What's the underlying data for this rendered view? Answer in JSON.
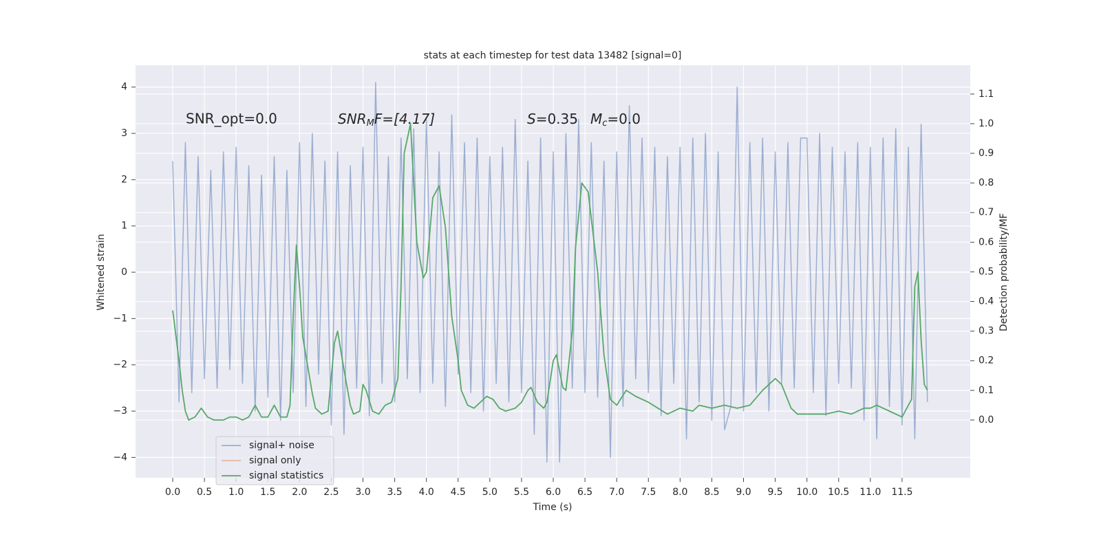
{
  "chart_data": {
    "type": "line",
    "title": "stats at each timestep for test data 13482 [signal=0]",
    "x_label": "Time (s)",
    "y_label": "Whitened strain",
    "y2_label": "Detection probability/MF",
    "annotations": {
      "snr_opt": "SNR_opt=0.0",
      "snr_mf": {
        "text": "SNR",
        "sub": "M",
        "rest": "F=[4.17]"
      },
      "s": {
        "text": "S",
        "rest": "=0.35"
      },
      "mc": {
        "text": "M",
        "sub": "c",
        "rest": "=0.0"
      }
    },
    "xlim": [
      -0.586,
      12.575
    ],
    "ylim": [
      -4.44,
      4.47
    ],
    "y2lim": [
      -0.195,
      1.197
    ],
    "grid": true,
    "xticks": [
      {
        "value": 0,
        "label": "0.0"
      },
      0.5,
      {
        "value": 1,
        "label": "1.0"
      },
      1.5,
      {
        "value": 2,
        "label": "2.0"
      },
      2.5,
      {
        "value": 3,
        "label": "3.0"
      },
      3.5,
      {
        "value": 4,
        "label": "4.0"
      },
      4.5,
      {
        "value": 5,
        "label": "5.0"
      },
      5.5,
      {
        "value": 6,
        "label": "6.0"
      },
      6.5,
      {
        "value": 7,
        "label": "7.0"
      },
      7.5,
      {
        "value": 8,
        "label": "8.0"
      },
      8.5,
      {
        "value": 9,
        "label": "9.0"
      },
      9.5,
      {
        "value": 10,
        "label": "10.0"
      },
      10.5,
      {
        "value": 11,
        "label": "11.0"
      },
      11.5
    ],
    "yticks": [
      {
        "value": -4,
        "label": "−4"
      },
      {
        "value": -3,
        "label": "−3"
      },
      {
        "value": -2,
        "label": "−2"
      },
      {
        "value": -1,
        "label": "−1"
      },
      0,
      1,
      2,
      3,
      4
    ],
    "y2ticks": [
      {
        "value": 0,
        "label": "0.0"
      },
      0.1,
      0.2,
      0.3,
      0.4,
      0.5,
      0.6,
      0.7,
      0.8,
      0.9,
      {
        "value": 1,
        "label": "1.0"
      },
      1.1
    ],
    "series": [
      {
        "name": "signal+ noise",
        "color": "#4c72b0",
        "opacity": 0.5,
        "x": [
          0,
          0.1,
          0.2,
          0.3,
          0.4,
          0.5,
          0.6,
          0.7,
          0.8,
          0.9,
          1,
          1.1,
          1.2,
          1.3,
          1.4,
          1.5,
          1.6,
          1.7,
          1.8,
          1.9,
          2,
          2.1,
          2.2,
          2.3,
          2.4,
          2.5,
          2.6,
          2.7,
          2.8,
          2.9,
          3,
          3.1,
          3.2,
          3.3,
          3.4,
          3.5,
          3.6,
          3.7,
          3.8,
          3.9,
          4,
          4.1,
          4.2,
          4.3,
          4.4,
          4.5,
          4.6,
          4.7,
          4.8,
          4.9,
          5,
          5.1,
          5.2,
          5.3,
          5.4,
          5.5,
          5.6,
          5.7,
          5.8,
          5.9,
          6,
          6.1,
          6.2,
          6.3,
          6.4,
          6.5,
          6.6,
          6.7,
          6.8,
          6.9,
          7,
          7.1,
          7.2,
          7.3,
          7.4,
          7.5,
          7.6,
          7.7,
          7.8,
          7.9,
          8,
          8.1,
          8.2,
          8.3,
          8.4,
          8.5,
          8.6,
          8.7,
          8.8,
          8.9,
          9,
          9.1,
          9.2,
          9.3,
          9.4,
          9.5,
          9.6,
          9.7,
          9.8,
          9.9,
          10,
          10.1,
          10.2,
          10.3,
          10.4,
          10.5,
          10.6,
          10.7,
          10.8,
          10.9,
          11,
          11.1,
          11.2,
          11.3,
          11.4,
          11.5,
          11.6,
          11.7,
          11.8,
          11.9
        ],
        "values": [
          2.4,
          -2.8,
          2.8,
          -2.6,
          2.5,
          -2.3,
          2.2,
          -2.5,
          2.6,
          -2.1,
          2.7,
          -2.4,
          2.3,
          -3.0,
          2.1,
          -2.7,
          2.5,
          -3.2,
          2.2,
          -2.6,
          2.8,
          -2.9,
          3.0,
          -2.2,
          2.4,
          -3.3,
          2.6,
          -3.5,
          2.3,
          -2.5,
          2.7,
          -3.1,
          4.1,
          -2.4,
          2.5,
          -2.8,
          2.9,
          -2.3,
          3.1,
          -2.6,
          3.3,
          -2.4,
          2.6,
          -2.9,
          3.4,
          -2.2,
          2.8,
          -2.6,
          2.9,
          -3.0,
          2.5,
          -2.4,
          2.7,
          -2.8,
          3.3,
          -2.6,
          2.4,
          -3.5,
          2.9,
          -4.1,
          2.6,
          -4.1,
          3.0,
          -2.5,
          3.3,
          -2.6,
          2.8,
          -2.7,
          2.4,
          -4.0,
          2.6,
          -2.9,
          3.6,
          -2.3,
          2.9,
          -2.6,
          2.7,
          -3.1,
          2.5,
          -2.4,
          2.7,
          -3.6,
          2.9,
          -2.8,
          3.0,
          -3.2,
          2.6,
          -3.4,
          -2.9,
          4.0,
          -3.0,
          2.8,
          -2.6,
          2.9,
          -3.0,
          2.6,
          -2.4,
          2.8,
          -2.5,
          2.9,
          2.9,
          -2.6,
          3.0,
          -3.1,
          2.7,
          -2.4,
          2.6,
          -2.5,
          2.8,
          -3.2,
          2.7,
          -3.6,
          2.9,
          -2.9,
          3.1,
          -3.3,
          2.7,
          -3.6,
          3.2,
          -2.8
        ]
      },
      {
        "name": "signal only",
        "color": "#dd8452",
        "opacity": 0.5,
        "x": [],
        "values": []
      },
      {
        "name": "signal statistics",
        "color": "#55a868",
        "opacity": 1,
        "axis": "y2",
        "x": [
          0,
          0.1,
          0.15,
          0.2,
          0.25,
          0.35,
          0.45,
          0.55,
          0.65,
          0.8,
          0.9,
          1,
          1.1,
          1.2,
          1.3,
          1.4,
          1.5,
          1.6,
          1.7,
          1.8,
          1.85,
          1.9,
          1.95,
          2,
          2.05,
          2.2,
          2.25,
          2.35,
          2.45,
          2.55,
          2.6,
          2.7,
          2.8,
          2.85,
          2.95,
          3,
          3.05,
          3.15,
          3.25,
          3.35,
          3.45,
          3.55,
          3.6,
          3.65,
          3.75,
          3.85,
          3.95,
          4,
          4.1,
          4.2,
          4.3,
          4.4,
          4.5,
          4.55,
          4.65,
          4.75,
          4.85,
          4.95,
          5.05,
          5.15,
          5.25,
          5.4,
          5.5,
          5.6,
          5.65,
          5.75,
          5.85,
          5.9,
          6,
          6.05,
          6.15,
          6.2,
          6.3,
          6.35,
          6.45,
          6.55,
          6.7,
          6.8,
          6.9,
          7,
          7.15,
          7.3,
          7.5,
          7.8,
          8,
          8.2,
          8.3,
          8.5,
          8.7,
          8.9,
          9.1,
          9.3,
          9.5,
          9.6,
          9.75,
          9.85,
          10,
          10.3,
          10.5,
          10.7,
          10.9,
          11,
          11.1,
          11.3,
          11.5,
          11.65,
          11.7,
          11.75,
          11.8,
          11.85,
          11.9
        ],
        "values": [
          0.37,
          0.2,
          0.1,
          0.03,
          0.0,
          0.01,
          0.04,
          0.01,
          0.0,
          0.0,
          0.01,
          0.01,
          0.0,
          0.01,
          0.05,
          0.01,
          0.01,
          0.05,
          0.01,
          0.01,
          0.05,
          0.35,
          0.59,
          0.45,
          0.28,
          0.09,
          0.04,
          0.02,
          0.03,
          0.26,
          0.3,
          0.17,
          0.05,
          0.02,
          0.03,
          0.12,
          0.1,
          0.03,
          0.02,
          0.05,
          0.06,
          0.14,
          0.45,
          0.9,
          1.0,
          0.6,
          0.48,
          0.5,
          0.75,
          0.79,
          0.65,
          0.35,
          0.2,
          0.1,
          0.05,
          0.04,
          0.06,
          0.08,
          0.07,
          0.04,
          0.03,
          0.04,
          0.06,
          0.1,
          0.11,
          0.06,
          0.04,
          0.06,
          0.2,
          0.22,
          0.11,
          0.1,
          0.3,
          0.58,
          0.8,
          0.77,
          0.5,
          0.22,
          0.07,
          0.05,
          0.1,
          0.08,
          0.06,
          0.02,
          0.04,
          0.03,
          0.05,
          0.04,
          0.05,
          0.04,
          0.05,
          0.1,
          0.14,
          0.12,
          0.04,
          0.02,
          0.02,
          0.02,
          0.03,
          0.02,
          0.04,
          0.04,
          0.05,
          0.03,
          0.01,
          0.07,
          0.45,
          0.5,
          0.27,
          0.12,
          0.1
        ]
      }
    ]
  }
}
